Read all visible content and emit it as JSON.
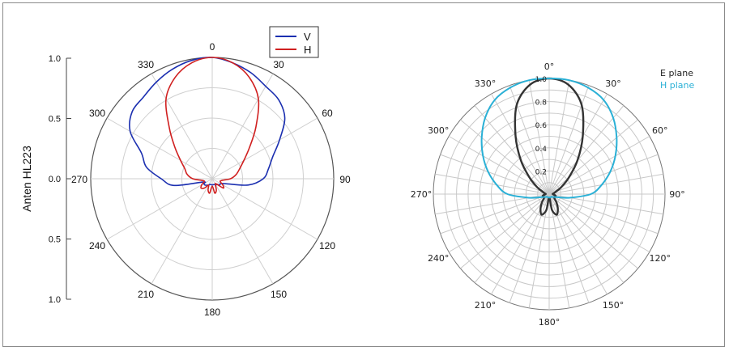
{
  "chart_data": [
    {
      "type": "polar",
      "ylabel": "Anten HL223",
      "r_tick_labels": [
        "1.0",
        "0.5",
        "0.0",
        "0.5",
        "1.0"
      ],
      "angle_labels": [
        "0",
        "30",
        "60",
        "90",
        "120",
        "150",
        "180",
        "210",
        "240",
        "270",
        "300",
        "330"
      ],
      "legend": [
        {
          "name": "V",
          "color": "#1b2fb0"
        },
        {
          "name": "H",
          "color": "#d02020"
        }
      ],
      "legend_position": "top-right",
      "series": [
        {
          "name": "V",
          "color": "#1b2fb0",
          "angles": [
            0,
            10,
            20,
            30,
            40,
            50,
            60,
            70,
            80,
            90,
            100,
            110,
            120,
            130,
            140,
            150,
            160,
            170,
            180,
            190,
            200,
            210,
            220,
            230,
            240,
            250,
            260,
            270,
            280,
            290,
            300,
            310,
            320,
            330,
            340,
            350
          ],
          "values": [
            1.0,
            0.97,
            0.93,
            0.88,
            0.85,
            0.78,
            0.64,
            0.53,
            0.47,
            0.42,
            0.3,
            0.12,
            0.08,
            0.08,
            0.06,
            0.06,
            0.05,
            0.05,
            0.05,
            0.05,
            0.05,
            0.06,
            0.07,
            0.08,
            0.08,
            0.08,
            0.32,
            0.42,
            0.55,
            0.62,
            0.78,
            0.86,
            0.88,
            0.92,
            0.96,
            0.99
          ]
        },
        {
          "name": "H",
          "color": "#d02020",
          "angles": [
            0,
            10,
            20,
            30,
            40,
            50,
            60,
            70,
            80,
            90,
            100,
            110,
            120,
            130,
            140,
            150,
            160,
            170,
            180,
            190,
            200,
            210,
            220,
            230,
            240,
            250,
            260,
            270,
            280,
            290,
            300,
            310,
            320,
            330,
            340,
            350
          ],
          "values": [
            1.0,
            0.97,
            0.89,
            0.76,
            0.56,
            0.4,
            0.3,
            0.24,
            0.2,
            0.15,
            0.08,
            0.07,
            0.1,
            0.12,
            0.06,
            0.05,
            0.1,
            0.12,
            0.06,
            0.12,
            0.1,
            0.06,
            0.1,
            0.12,
            0.1,
            0.07,
            0.08,
            0.16,
            0.21,
            0.24,
            0.3,
            0.4,
            0.55,
            0.76,
            0.89,
            0.97
          ]
        }
      ]
    },
    {
      "type": "polar",
      "r_tick_labels": [
        "0.2",
        "0.4",
        "0.6",
        "0.8",
        "1.0"
      ],
      "angle_labels": [
        "0°",
        "30°",
        "60°",
        "90°",
        "120°",
        "150°",
        "180°",
        "210°",
        "240°",
        "270°",
        "300°",
        "330°"
      ],
      "legend": [
        {
          "name": "E plane",
          "color": "#333333"
        },
        {
          "name": "H plane",
          "color": "#2ab0d6"
        }
      ],
      "legend_position": "top-right",
      "series": [
        {
          "name": "E plane",
          "color": "#333333",
          "angles": [
            0,
            10,
            20,
            30,
            40,
            50,
            60,
            70,
            80,
            90,
            100,
            110,
            120,
            130,
            140,
            150,
            160,
            170,
            180,
            190,
            200,
            210,
            220,
            230,
            240,
            250,
            260,
            270,
            280,
            290,
            300,
            310,
            320,
            330,
            340,
            350
          ],
          "values": [
            1.0,
            0.96,
            0.82,
            0.58,
            0.38,
            0.22,
            0.12,
            0.06,
            0.04,
            0.03,
            0.05,
            0.06,
            0.05,
            0.06,
            0.1,
            0.15,
            0.19,
            0.14,
            0.03,
            0.14,
            0.19,
            0.15,
            0.1,
            0.06,
            0.05,
            0.06,
            0.05,
            0.03,
            0.04,
            0.06,
            0.12,
            0.22,
            0.38,
            0.58,
            0.82,
            0.96
          ]
        },
        {
          "name": "H plane",
          "color": "#2ab0d6",
          "angles": [
            0,
            10,
            20,
            30,
            40,
            50,
            60,
            70,
            80,
            90,
            100,
            110,
            120,
            130,
            140,
            150,
            160,
            170,
            180,
            190,
            200,
            210,
            220,
            230,
            240,
            250,
            260,
            270,
            280,
            290,
            300,
            310,
            320,
            330,
            340,
            350
          ],
          "values": [
            1.0,
            1.0,
            0.98,
            0.94,
            0.86,
            0.76,
            0.66,
            0.56,
            0.46,
            0.36,
            0.18,
            0.08,
            0.05,
            0.04,
            0.03,
            0.03,
            0.03,
            0.03,
            0.03,
            0.03,
            0.03,
            0.03,
            0.03,
            0.04,
            0.05,
            0.08,
            0.18,
            0.36,
            0.46,
            0.56,
            0.66,
            0.76,
            0.86,
            0.94,
            0.98,
            1.0
          ]
        }
      ]
    }
  ]
}
